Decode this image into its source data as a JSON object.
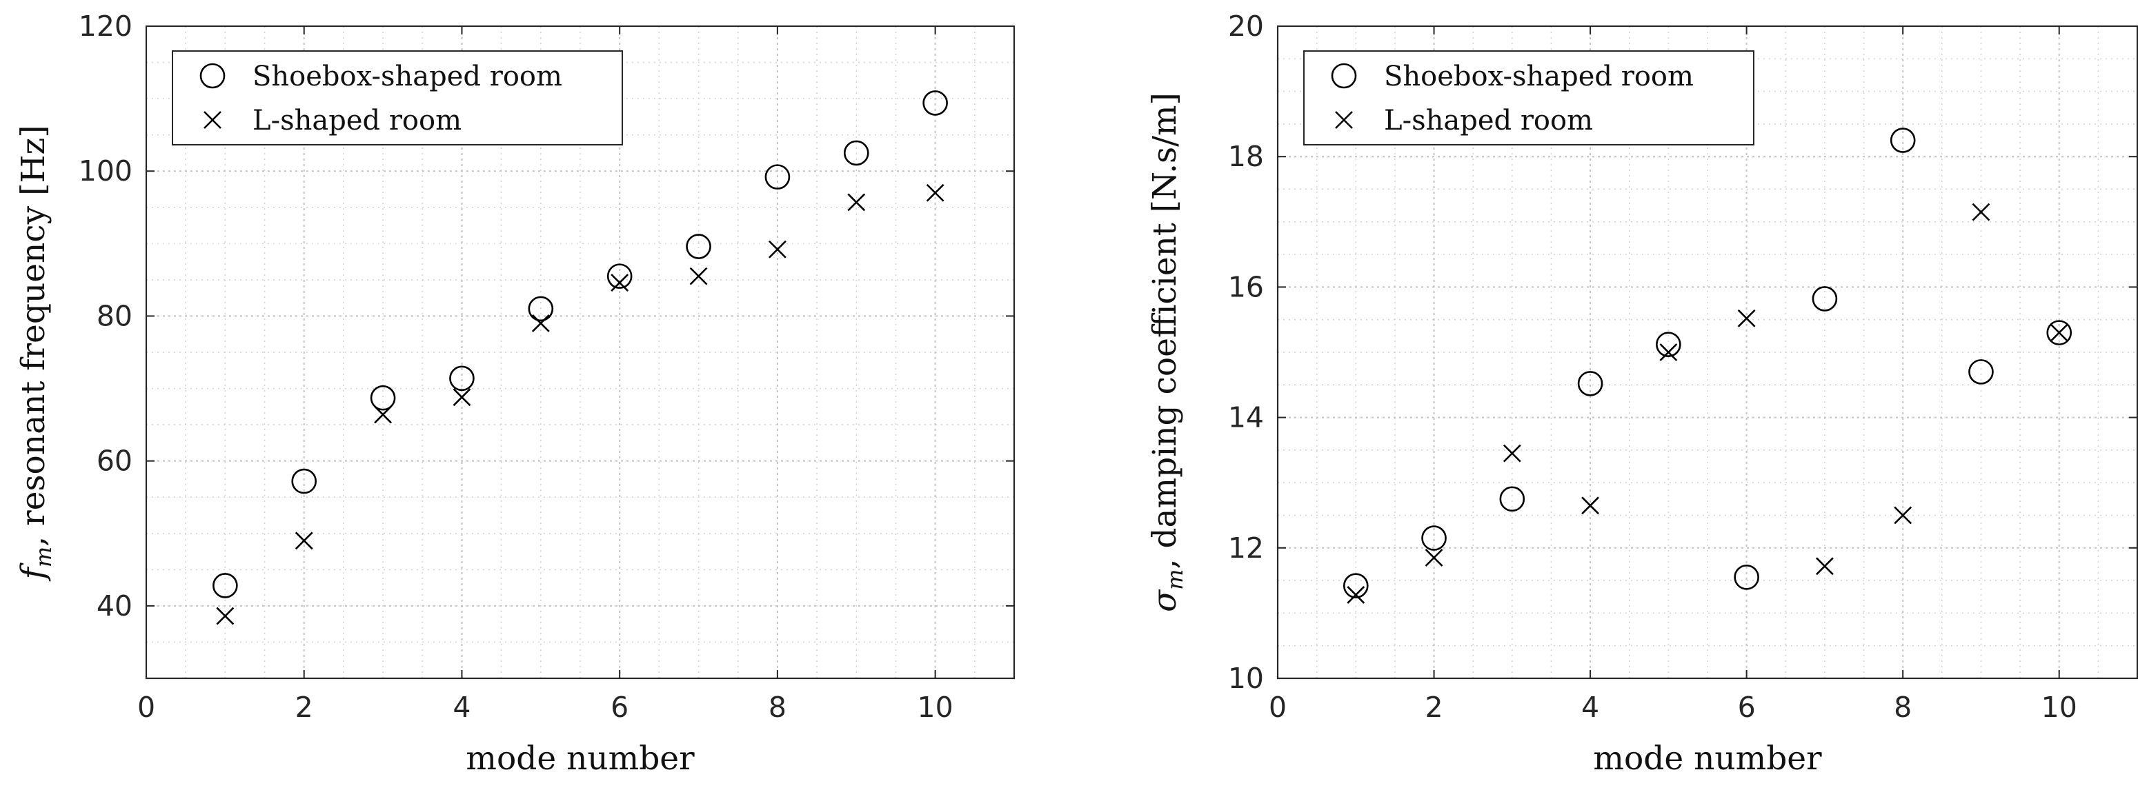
{
  "chart_data": [
    {
      "type": "scatter",
      "xlabel": "mode number",
      "ylabel": "f_m, resonant frequency [Hz]",
      "ylabel_parts": {
        "symbol": "f",
        "subscript": "m",
        "rest": ", resonant frequency [Hz]"
      },
      "xlim": [
        0,
        11
      ],
      "ylim": [
        30,
        120
      ],
      "xticks": [
        0,
        2,
        4,
        6,
        8,
        10
      ],
      "yticks": [
        40,
        60,
        80,
        100,
        120
      ],
      "grid": true,
      "minor_grid": true,
      "legend_position": "top-left",
      "series": [
        {
          "name": "Shoebox-shaped room",
          "marker": "circle",
          "x": [
            1,
            2,
            3,
            4,
            5,
            6,
            7,
            8,
            9,
            10
          ],
          "y": [
            42.8,
            57.2,
            68.7,
            71.4,
            81.0,
            85.5,
            89.6,
            99.2,
            102.5,
            109.4
          ]
        },
        {
          "name": "L-shaped room",
          "marker": "x",
          "x": [
            1,
            2,
            3,
            4,
            5,
            6,
            7,
            8,
            9,
            10
          ],
          "y": [
            38.6,
            49.0,
            66.4,
            68.8,
            79.0,
            84.6,
            85.5,
            89.2,
            95.7,
            97.0
          ]
        }
      ]
    },
    {
      "type": "scatter",
      "xlabel": "mode number",
      "ylabel": "σ_m, damping coefficient [N.s/m]",
      "ylabel_parts": {
        "symbol": "σ",
        "subscript": "m",
        "rest": ", damping coefficient [N.s/m]"
      },
      "xlim": [
        0,
        11
      ],
      "ylim": [
        10,
        20
      ],
      "xticks": [
        0,
        2,
        4,
        6,
        8,
        10
      ],
      "yticks": [
        10,
        12,
        14,
        16,
        18,
        20
      ],
      "grid": true,
      "minor_grid": true,
      "legend_position": "top-left",
      "series": [
        {
          "name": "Shoebox-shaped room",
          "marker": "circle",
          "x": [
            1,
            2,
            3,
            4,
            5,
            6,
            7,
            8,
            9,
            10
          ],
          "y": [
            11.42,
            12.15,
            12.75,
            14.52,
            15.12,
            11.55,
            15.82,
            18.25,
            14.7,
            15.3
          ]
        },
        {
          "name": "L-shaped room",
          "marker": "x",
          "x": [
            1,
            2,
            3,
            4,
            5,
            6,
            7,
            8,
            9,
            10
          ],
          "y": [
            11.28,
            11.85,
            13.45,
            12.65,
            15.0,
            15.52,
            11.72,
            12.5,
            17.15,
            15.3
          ]
        }
      ]
    }
  ]
}
